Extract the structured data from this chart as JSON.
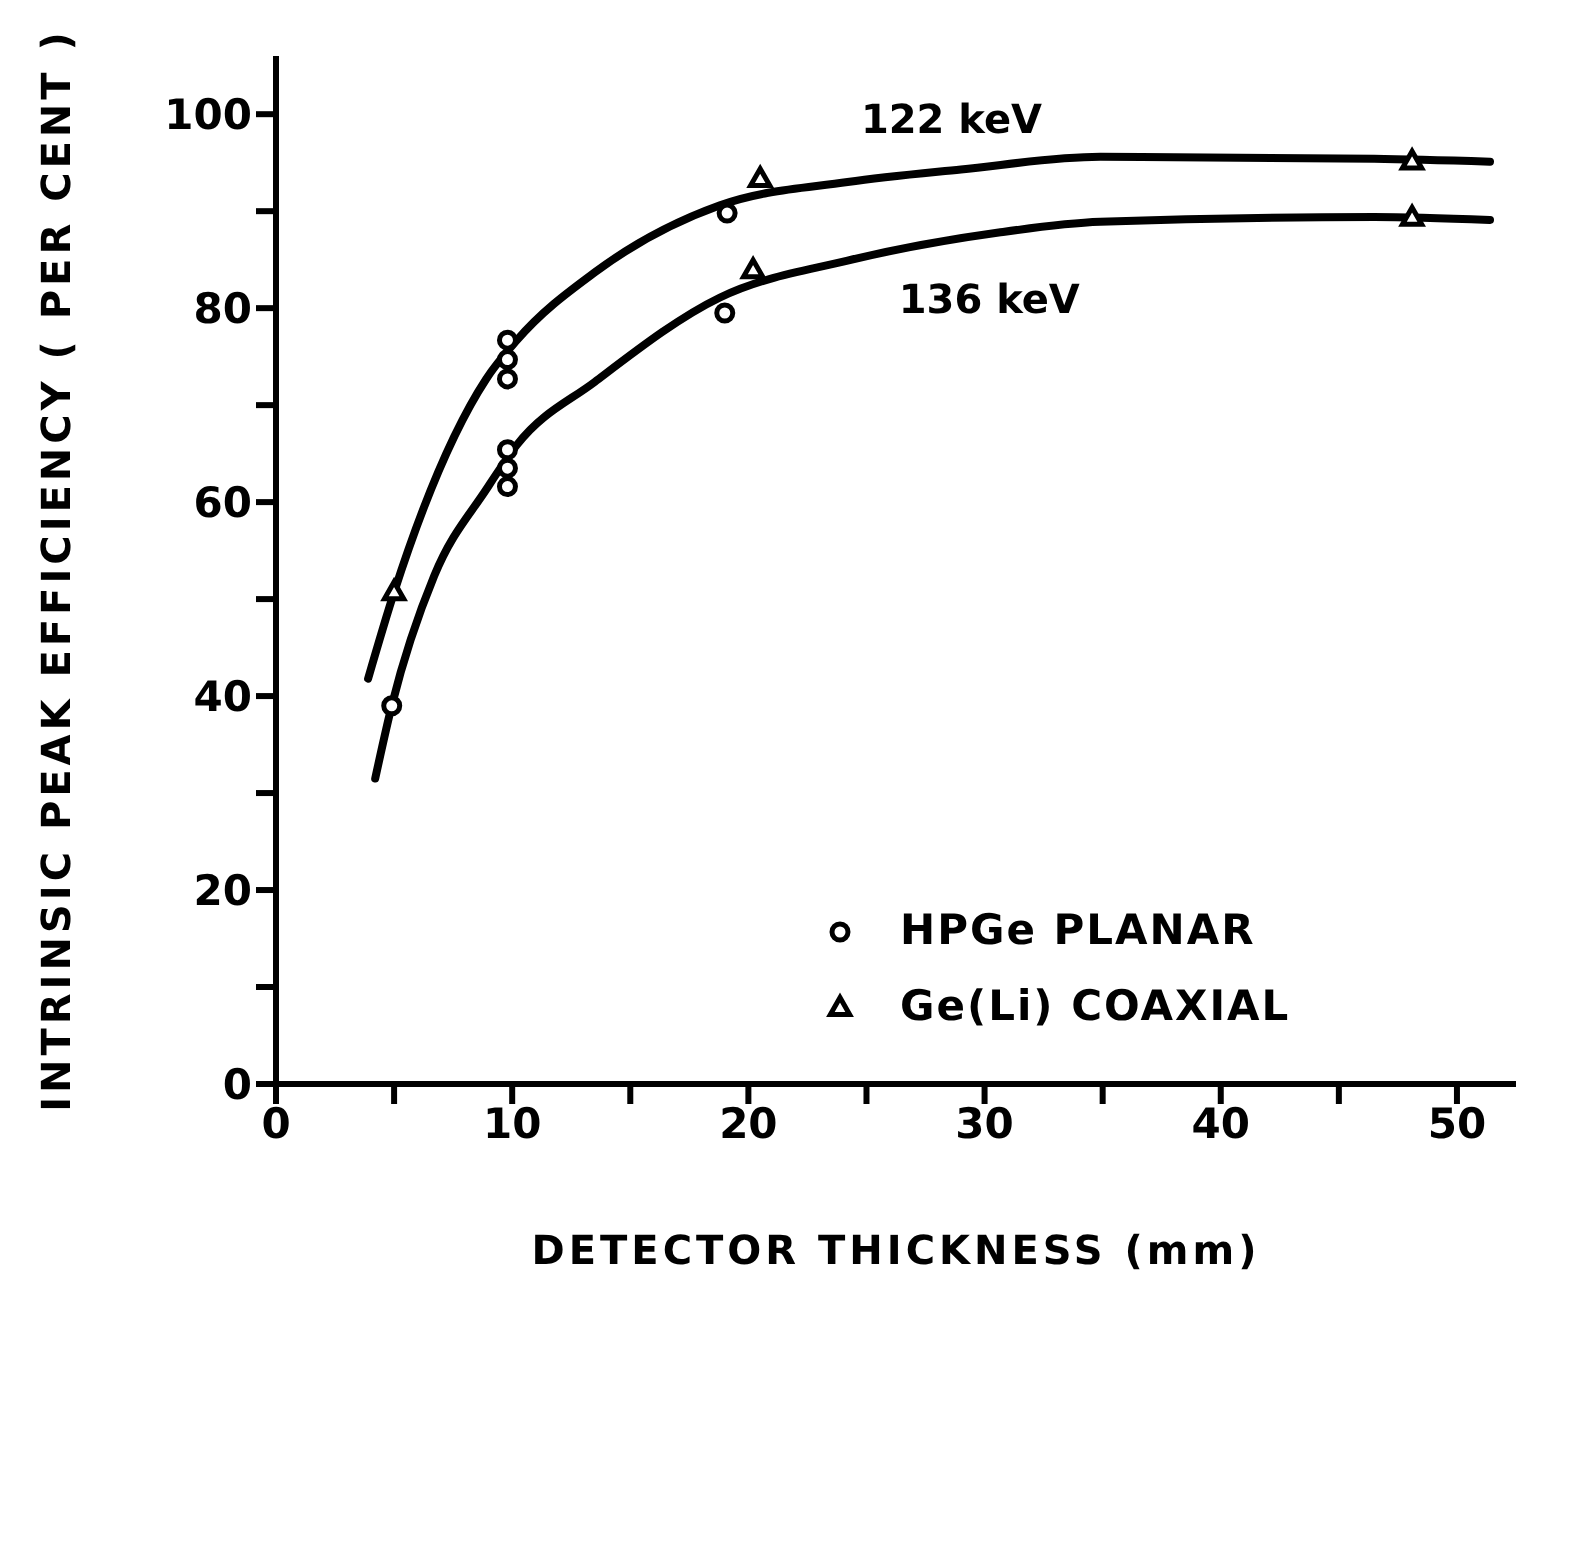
{
  "chart_data": {
    "type": "scatter",
    "xlabel": "DETECTOR THICKNESS (mm)",
    "ylabel": "INTRINSIC PEAK EFFICIENCY ( PER CENT )",
    "xlim": [
      0,
      52.5
    ],
    "ylim": [
      0,
      106
    ],
    "xticks": [
      0,
      {
        "value": 5,
        "label": null
      },
      10,
      {
        "value": 15,
        "label": null
      },
      20,
      {
        "value": 25,
        "label": null
      },
      30,
      {
        "value": 35,
        "label": null
      },
      40,
      {
        "value": 45,
        "label": null
      },
      50
    ],
    "yticks": [
      0,
      {
        "value": 10,
        "label": null
      },
      20,
      {
        "value": 30,
        "label": null
      },
      40,
      {
        "value": 50,
        "label": null
      },
      60,
      {
        "value": 70,
        "label": null
      },
      80,
      {
        "value": 90,
        "label": null
      },
      100
    ],
    "grid": false,
    "legend": "bottom right",
    "series": [
      {
        "name": "HPGe PLANAR",
        "marker": "circle",
        "color": "#000000",
        "x": [
          4.9,
          9.8,
          9.8,
          9.8,
          9.8,
          9.8,
          9.8,
          19.1,
          19.0
        ],
        "values": [
          39,
          76.7,
          74.7,
          72.7,
          65.4,
          63.5,
          61.6,
          89.8,
          79.5
        ]
      },
      {
        "name": "Ge(Li) COAXIAL",
        "marker": "triangle",
        "color": "#000000",
        "x": [
          5,
          20.5,
          20.2,
          48.1,
          48.1
        ],
        "values": [
          50.7,
          93.3,
          83.9,
          95.1,
          89.3
        ]
      },
      {
        "name": "122 keV",
        "type": "line",
        "marker": "none",
        "color": "#000000",
        "x": [
          3.9,
          5,
          8.9,
          10.2,
          13.5,
          18.8,
          24.2,
          29,
          34.9,
          46.5,
          51.4
        ],
        "values": [
          41.8,
          50.7,
          72.7,
          76.7,
          83.7,
          90.6,
          93,
          94.3,
          95.6,
          95.4,
          95.1
        ]
      },
      {
        "name": "136 keV",
        "type": "line",
        "marker": "none",
        "color": "#000000",
        "x": [
          4.2,
          4.9,
          6.7,
          8.9,
          10.2,
          13.5,
          18.8,
          24.2,
          30.6,
          34.9,
          46.5,
          51.4
        ],
        "values": [
          31.5,
          39,
          52.4,
          61.3,
          65.9,
          72.4,
          81.1,
          84.9,
          87.8,
          88.9,
          89.4,
          89.1
        ]
      }
    ]
  }
}
